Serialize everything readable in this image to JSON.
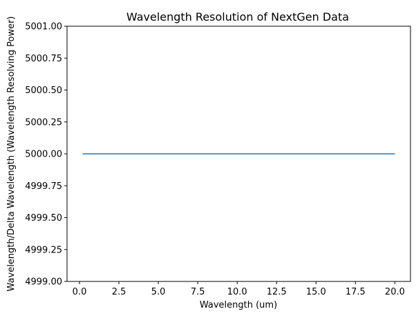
{
  "chart_data": {
    "type": "line",
    "title": "Wavelength Resolution of NextGen Data",
    "xlabel": "Wavelength (um)",
    "ylabel": "Wavelength/Delta Wavelength (Wavelength Resolving Power)",
    "xlim": [
      -0.79,
      20.99
    ],
    "ylim": [
      4999.0,
      5001.0
    ],
    "xticks": [
      0.0,
      2.5,
      5.0,
      7.5,
      10.0,
      12.5,
      15.0,
      17.5,
      20.0
    ],
    "xtick_labels": [
      "0.0",
      "2.5",
      "5.0",
      "7.5",
      "10.0",
      "12.5",
      "15.0",
      "17.5",
      "20.0"
    ],
    "yticks": [
      4999.0,
      4999.25,
      4999.5,
      4999.75,
      5000.0,
      5000.25,
      5000.5,
      5000.75,
      5001.0
    ],
    "ytick_labels": [
      "4999.00",
      "4999.25",
      "4999.50",
      "4999.75",
      "5000.00",
      "5000.25",
      "5000.50",
      "5000.75",
      "5001.00"
    ],
    "grid": false,
    "series": [
      {
        "color": "#1f77b4",
        "x": [
          0.2,
          20.0
        ],
        "y": [
          5000.0,
          5000.0
        ]
      }
    ]
  }
}
